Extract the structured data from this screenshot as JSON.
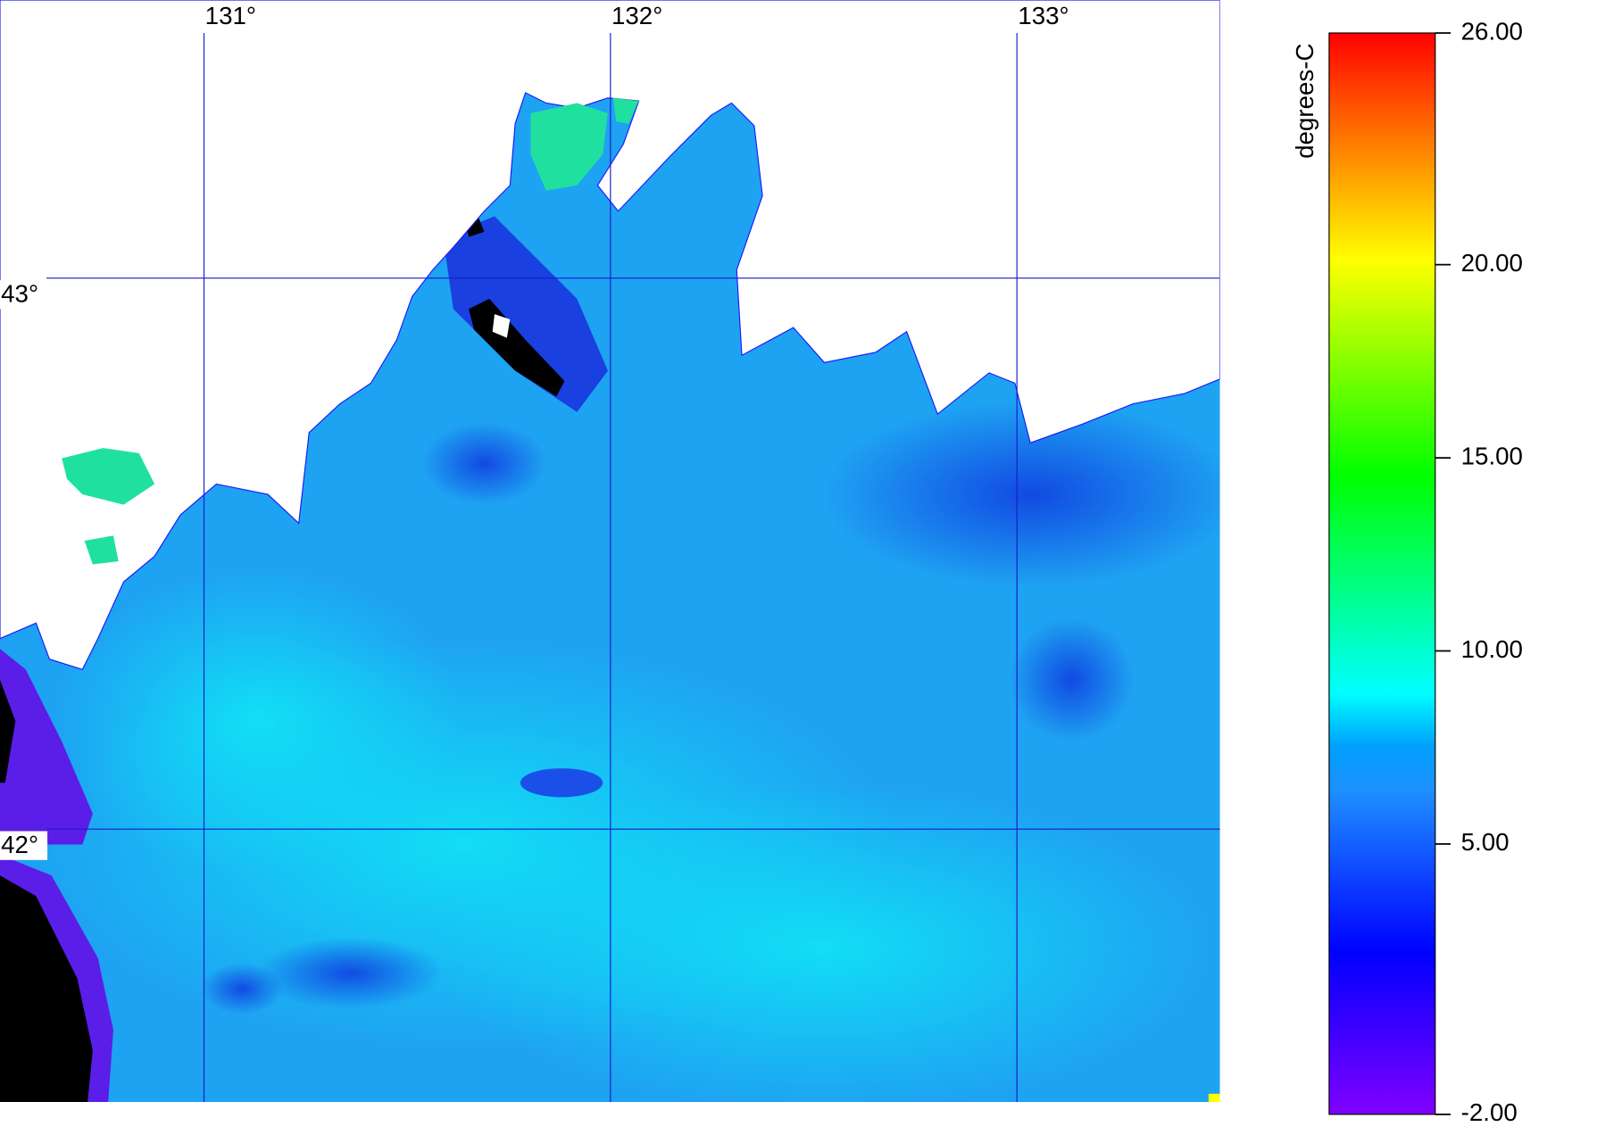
{
  "map": {
    "longitudes": [
      {
        "value": 131,
        "label": "131°"
      },
      {
        "value": 132,
        "label": "132°"
      },
      {
        "value": 133,
        "label": "133°"
      }
    ],
    "latitudes": [
      {
        "value": 43,
        "label": "43°"
      },
      {
        "value": 42,
        "label": "42°"
      }
    ],
    "colorbar": {
      "label": "degrees-C",
      "range": [
        -2,
        26
      ],
      "ticks": [
        {
          "value": -2,
          "label": "-2.00"
        },
        {
          "value": 5,
          "label": "5.00"
        },
        {
          "value": 10,
          "label": "10.00"
        },
        {
          "value": 15,
          "label": "15.00"
        },
        {
          "value": 20,
          "label": "20.00"
        },
        {
          "value": 26,
          "label": "26.00"
        }
      ]
    }
  }
}
